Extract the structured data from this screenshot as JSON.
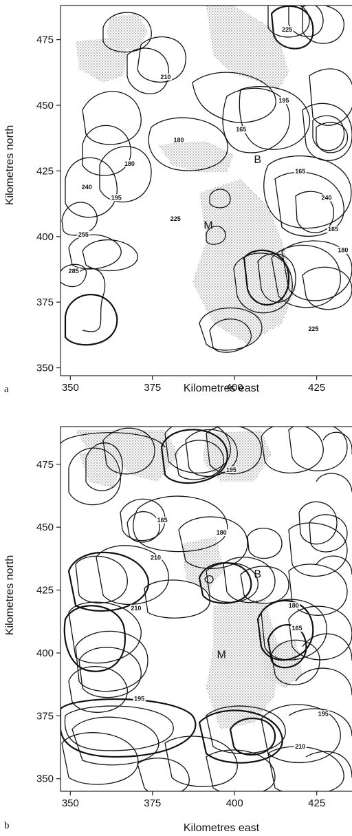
{
  "chart_data": [
    {
      "type": "map",
      "panel": "a",
      "xlabel": "Kilometres east",
      "ylabel": "Kilometres north",
      "xlim": [
        347,
        437
      ],
      "ylim": [
        347,
        488
      ],
      "x_ticks": [
        350,
        375,
        400,
        425
      ],
      "y_ticks": [
        350,
        375,
        400,
        425,
        450,
        475
      ],
      "places": [
        {
          "label": "M",
          "x": 392,
          "y": 403
        },
        {
          "label": "B",
          "x": 407,
          "y": 428
        }
      ],
      "contour_labels": [
        {
          "text": "225",
          "x": 416,
          "y": 478
        },
        {
          "text": "210",
          "x": 379,
          "y": 460
        },
        {
          "text": "195",
          "x": 415,
          "y": 451
        },
        {
          "text": "180",
          "x": 383,
          "y": 436
        },
        {
          "text": "165",
          "x": 402,
          "y": 440
        },
        {
          "text": "180",
          "x": 368,
          "y": 427
        },
        {
          "text": "165",
          "x": 420,
          "y": 424
        },
        {
          "text": "240",
          "x": 355,
          "y": 418
        },
        {
          "text": "195",
          "x": 364,
          "y": 414
        },
        {
          "text": "240",
          "x": 428,
          "y": 414
        },
        {
          "text": "225",
          "x": 382,
          "y": 406
        },
        {
          "text": "165",
          "x": 430,
          "y": 402
        },
        {
          "text": "255",
          "x": 354,
          "y": 400
        },
        {
          "text": "180",
          "x": 433,
          "y": 394
        },
        {
          "text": "285",
          "x": 351,
          "y": 386
        },
        {
          "text": "225",
          "x": 424,
          "y": 364
        }
      ]
    },
    {
      "type": "map",
      "panel": "b",
      "xlabel": "Kilometres east",
      "ylabel": "Kilometres north",
      "xlim": [
        347,
        437
      ],
      "ylim": [
        345,
        490
      ],
      "x_ticks": [
        350,
        375,
        400,
        425
      ],
      "y_ticks": [
        350,
        375,
        400,
        425,
        450,
        475
      ],
      "places": [
        {
          "label": "M",
          "x": 396,
          "y": 398
        },
        {
          "label": "B",
          "x": 407,
          "y": 430
        }
      ],
      "contour_labels": [
        {
          "text": "195",
          "x": 399,
          "y": 472
        },
        {
          "text": "165",
          "x": 378,
          "y": 452
        },
        {
          "text": "180",
          "x": 396,
          "y": 447
        },
        {
          "text": "210",
          "x": 376,
          "y": 437
        },
        {
          "text": "210",
          "x": 370,
          "y": 417
        },
        {
          "text": "180",
          "x": 418,
          "y": 418
        },
        {
          "text": "165",
          "x": 419,
          "y": 409
        },
        {
          "text": "195",
          "x": 371,
          "y": 381
        },
        {
          "text": "195",
          "x": 427,
          "y": 375
        },
        {
          "text": "210",
          "x": 420,
          "y": 362
        }
      ]
    }
  ],
  "panels": [
    {
      "tag": "a"
    },
    {
      "tag": "b"
    }
  ]
}
